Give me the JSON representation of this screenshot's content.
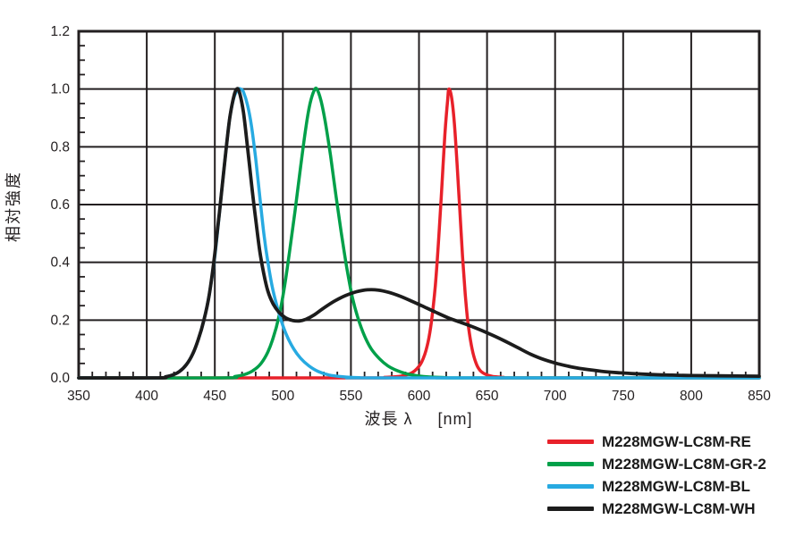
{
  "chart_data": {
    "type": "line",
    "title": "",
    "xlabel": "波長 λ",
    "xlabel_unit": "[nm]",
    "ylabel": "相対強度",
    "axes": {
      "xlim": [
        350,
        850
      ],
      "ylim": [
        0,
        1.2
      ],
      "x_major": 50,
      "x_minor": 10,
      "y_major": 0.2,
      "y_minor": 0.05,
      "grid": "major-both",
      "frame_color": "#231f20"
    },
    "xticks": [
      "350",
      "400",
      "450",
      "500",
      "550",
      "600",
      "650",
      "700",
      "750",
      "800",
      "850"
    ],
    "yticks": [
      "0.0",
      "0.2",
      "0.4",
      "0.6",
      "0.8",
      "1.0",
      "1.2"
    ],
    "legend_position": "below-right",
    "series": [
      {
        "name": "RE",
        "label": "M228MGW-LC8M-RE",
        "color": "#e8212a",
        "peak_nm": 622,
        "points": [
          [
            350,
            0
          ],
          [
            560,
            0
          ],
          [
            575,
            0.002
          ],
          [
            585,
            0.005
          ],
          [
            592,
            0.012
          ],
          [
            597,
            0.025
          ],
          [
            602,
            0.055
          ],
          [
            606,
            0.11
          ],
          [
            609,
            0.19
          ],
          [
            612,
            0.32
          ],
          [
            615,
            0.52
          ],
          [
            617,
            0.68
          ],
          [
            619,
            0.84
          ],
          [
            621,
            0.96
          ],
          [
            622,
            1.0
          ],
          [
            624,
            0.97
          ],
          [
            626,
            0.88
          ],
          [
            628,
            0.74
          ],
          [
            630,
            0.58
          ],
          [
            632,
            0.42
          ],
          [
            634,
            0.29
          ],
          [
            636,
            0.19
          ],
          [
            639,
            0.1
          ],
          [
            642,
            0.05
          ],
          [
            645,
            0.025
          ],
          [
            649,
            0.012
          ],
          [
            654,
            0.005
          ],
          [
            662,
            0.002
          ],
          [
            672,
            0
          ],
          [
            850,
            0
          ]
        ]
      },
      {
        "name": "GR-2",
        "label": "M228MGW-LC8M-GR-2",
        "color": "#00a049",
        "peak_nm": 525,
        "points": [
          [
            350,
            0
          ],
          [
            455,
            0
          ],
          [
            465,
            0.005
          ],
          [
            472,
            0.012
          ],
          [
            478,
            0.025
          ],
          [
            484,
            0.05
          ],
          [
            489,
            0.09
          ],
          [
            493,
            0.14
          ],
          [
            497,
            0.21
          ],
          [
            501,
            0.31
          ],
          [
            505,
            0.44
          ],
          [
            509,
            0.58
          ],
          [
            513,
            0.73
          ],
          [
            517,
            0.87
          ],
          [
            520,
            0.95
          ],
          [
            523,
            0.995
          ],
          [
            525,
            1.0
          ],
          [
            528,
            0.96
          ],
          [
            531,
            0.89
          ],
          [
            535,
            0.77
          ],
          [
            539,
            0.63
          ],
          [
            543,
            0.5
          ],
          [
            547,
            0.38
          ],
          [
            551,
            0.28
          ],
          [
            555,
            0.21
          ],
          [
            560,
            0.145
          ],
          [
            565,
            0.1
          ],
          [
            571,
            0.066
          ],
          [
            577,
            0.042
          ],
          [
            584,
            0.025
          ],
          [
            591,
            0.014
          ],
          [
            599,
            0.007
          ],
          [
            608,
            0.003
          ],
          [
            620,
            0.001
          ],
          [
            632,
            0
          ],
          [
            850,
            0
          ]
        ]
      },
      {
        "name": "BL",
        "label": "M228MGW-LC8M-BL",
        "color": "#27aae1",
        "peak_nm": 469,
        "points": [
          [
            350,
            0
          ],
          [
            408,
            0
          ],
          [
            414,
            0.004
          ],
          [
            419,
            0.01
          ],
          [
            424,
            0.022
          ],
          [
            429,
            0.045
          ],
          [
            434,
            0.085
          ],
          [
            438,
            0.135
          ],
          [
            442,
            0.2
          ],
          [
            446,
            0.29
          ],
          [
            450,
            0.42
          ],
          [
            454,
            0.6
          ],
          [
            458,
            0.78
          ],
          [
            461,
            0.9
          ],
          [
            464,
            0.97
          ],
          [
            467,
            0.998
          ],
          [
            469,
            1.0
          ],
          [
            471,
            0.99
          ],
          [
            474,
            0.945
          ],
          [
            477,
            0.87
          ],
          [
            480,
            0.76
          ],
          [
            483,
            0.63
          ],
          [
            486,
            0.5
          ],
          [
            489,
            0.4
          ],
          [
            492,
            0.32
          ],
          [
            495,
            0.26
          ],
          [
            499,
            0.195
          ],
          [
            503,
            0.145
          ],
          [
            508,
            0.1
          ],
          [
            513,
            0.068
          ],
          [
            519,
            0.042
          ],
          [
            526,
            0.022
          ],
          [
            534,
            0.01
          ],
          [
            544,
            0.004
          ],
          [
            556,
            0.001
          ],
          [
            572,
            0
          ],
          [
            850,
            0
          ]
        ]
      },
      {
        "name": "WH",
        "label": "M228MGW-LC8M-WH",
        "color": "#1c1c1c",
        "peak_nm": 467,
        "points": [
          [
            350,
            0
          ],
          [
            408,
            0
          ],
          [
            414,
            0.004
          ],
          [
            419,
            0.01
          ],
          [
            424,
            0.022
          ],
          [
            429,
            0.045
          ],
          [
            434,
            0.085
          ],
          [
            438,
            0.135
          ],
          [
            442,
            0.2
          ],
          [
            446,
            0.29
          ],
          [
            450,
            0.43
          ],
          [
            454,
            0.6
          ],
          [
            458,
            0.78
          ],
          [
            461,
            0.9
          ],
          [
            464,
            0.975
          ],
          [
            466,
            1.0
          ],
          [
            468,
            0.99
          ],
          [
            471,
            0.92
          ],
          [
            474,
            0.8
          ],
          [
            477,
            0.67
          ],
          [
            480,
            0.55
          ],
          [
            483,
            0.44
          ],
          [
            486,
            0.36
          ],
          [
            489,
            0.3
          ],
          [
            493,
            0.255
          ],
          [
            497,
            0.228
          ],
          [
            502,
            0.208
          ],
          [
            507,
            0.199
          ],
          [
            512,
            0.197
          ],
          [
            517,
            0.203
          ],
          [
            523,
            0.218
          ],
          [
            530,
            0.242
          ],
          [
            538,
            0.266
          ],
          [
            546,
            0.285
          ],
          [
            554,
            0.298
          ],
          [
            562,
            0.305
          ],
          [
            570,
            0.304
          ],
          [
            578,
            0.296
          ],
          [
            586,
            0.283
          ],
          [
            594,
            0.267
          ],
          [
            602,
            0.25
          ],
          [
            612,
            0.228
          ],
          [
            622,
            0.207
          ],
          [
            632,
            0.19
          ],
          [
            642,
            0.172
          ],
          [
            652,
            0.152
          ],
          [
            662,
            0.13
          ],
          [
            672,
            0.106
          ],
          [
            682,
            0.082
          ],
          [
            692,
            0.063
          ],
          [
            702,
            0.049
          ],
          [
            712,
            0.038
          ],
          [
            722,
            0.03
          ],
          [
            734,
            0.023
          ],
          [
            746,
            0.018
          ],
          [
            758,
            0.0145
          ],
          [
            772,
            0.0115
          ],
          [
            786,
            0.0095
          ],
          [
            800,
            0.008
          ],
          [
            820,
            0.007
          ],
          [
            850,
            0.006
          ]
        ]
      }
    ]
  },
  "style_colors": {
    "grid": "#231f20",
    "tick_text": "#231f20",
    "background": "#ffffff"
  }
}
